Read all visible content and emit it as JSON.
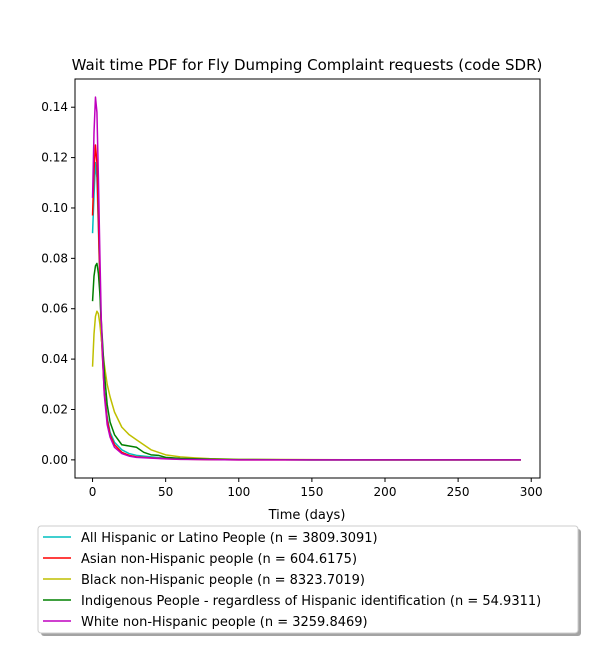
{
  "chart_data": {
    "type": "line",
    "title": "Wait time PDF for Fly Dumping Complaint  requests (code SDR)",
    "xlabel": "Time (days)",
    "ylabel": "",
    "xlim": [
      -12,
      306
    ],
    "ylim": [
      -0.0072,
      0.1512
    ],
    "xticks": [
      0,
      50,
      100,
      150,
      200,
      250,
      300
    ],
    "yticks": [
      0.0,
      0.02,
      0.04,
      0.06,
      0.08,
      0.1,
      0.12,
      0.14
    ],
    "grid": false,
    "legend_placement": "below",
    "series": [
      {
        "name": "All Hispanic or Latino People (n = 3809.3091)",
        "color": "#00bfbf",
        "x": [
          0,
          1,
          2,
          3,
          4,
          5,
          6,
          8,
          10,
          12,
          15,
          20,
          25,
          30,
          40,
          50,
          60,
          80,
          100,
          150,
          200,
          250,
          293
        ],
        "y": [
          0.09,
          0.105,
          0.118,
          0.112,
          0.092,
          0.07,
          0.05,
          0.028,
          0.017,
          0.011,
          0.007,
          0.004,
          0.0025,
          0.0018,
          0.0012,
          0.0007,
          0.0004,
          0.0002,
          0.0001,
          0.0,
          0.0,
          0.0,
          0.0
        ]
      },
      {
        "name": "Asian non-Hispanic people (n = 604.6175)",
        "color": "#ff0000",
        "x": [
          0,
          1,
          2,
          3,
          4,
          5,
          6,
          8,
          10,
          12,
          15,
          20,
          25,
          30,
          40,
          50,
          60,
          80,
          100,
          150,
          200,
          250,
          293
        ],
        "y": [
          0.097,
          0.115,
          0.125,
          0.118,
          0.095,
          0.072,
          0.05,
          0.027,
          0.016,
          0.01,
          0.006,
          0.003,
          0.0018,
          0.0012,
          0.0008,
          0.0005,
          0.0003,
          0.0001,
          0.0,
          0.0,
          0.0,
          0.0,
          0.0
        ]
      },
      {
        "name": "Black non-Hispanic people (n = 8323.7019)",
        "color": "#bfbf00",
        "x": [
          0,
          1,
          2,
          3,
          4,
          5,
          6,
          8,
          10,
          12,
          15,
          20,
          25,
          30,
          35,
          40,
          45,
          50,
          60,
          70,
          80,
          100,
          150,
          200,
          250,
          293
        ],
        "y": [
          0.037,
          0.05,
          0.057,
          0.059,
          0.058,
          0.054,
          0.048,
          0.038,
          0.03,
          0.025,
          0.019,
          0.013,
          0.01,
          0.008,
          0.006,
          0.004,
          0.003,
          0.002,
          0.0012,
          0.0008,
          0.0005,
          0.0002,
          0.0001,
          0.0,
          0.0,
          0.0
        ]
      },
      {
        "name": "Indigenous People - regardless of Hispanic identification (n = 54.9311)",
        "color": "#008000",
        "x": [
          0,
          1,
          2,
          3,
          4,
          5,
          6,
          8,
          10,
          12,
          15,
          20,
          25,
          30,
          35,
          40,
          45,
          50,
          60,
          80,
          100,
          150,
          200,
          250,
          293
        ],
        "y": [
          0.063,
          0.073,
          0.077,
          0.078,
          0.074,
          0.066,
          0.055,
          0.035,
          0.022,
          0.015,
          0.01,
          0.006,
          0.0055,
          0.005,
          0.003,
          0.002,
          0.0018,
          0.001,
          0.0006,
          0.0003,
          0.0001,
          0.0,
          0.0,
          0.0,
          0.0
        ]
      },
      {
        "name": "White non-Hispanic people (n = 3259.8469)",
        "color": "#bf00bf",
        "x": [
          0,
          1,
          2,
          3,
          4,
          5,
          6,
          8,
          10,
          12,
          15,
          20,
          25,
          30,
          40,
          50,
          60,
          80,
          100,
          150,
          200,
          250,
          293
        ],
        "y": [
          0.104,
          0.13,
          0.144,
          0.138,
          0.112,
          0.082,
          0.055,
          0.026,
          0.014,
          0.009,
          0.005,
          0.0025,
          0.0015,
          0.001,
          0.0007,
          0.0004,
          0.0002,
          0.0001,
          0.0,
          0.0,
          0.0,
          0.0,
          0.0
        ]
      }
    ]
  }
}
